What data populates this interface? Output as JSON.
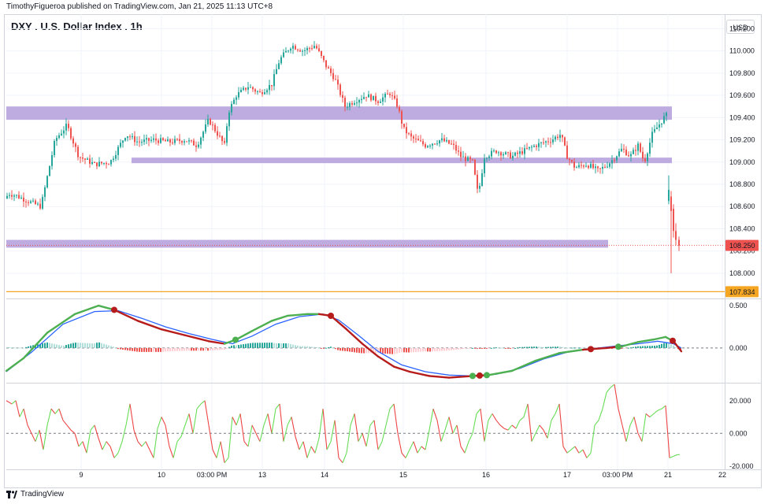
{
  "header": {
    "publisher_line": "TimothyFigueroa published on TradingView.com, Jan 21, 2025 11:13 UTC+8"
  },
  "chart_title": "DXY . U.S. Dollar Index . 1h",
  "currency_label": "USD",
  "footer_brand": "TradingView",
  "colors": {
    "up": "#26a69a",
    "down": "#ef5350",
    "zone": "#b39ddb",
    "support_line": "#f5a623",
    "macd_fast": "#4caf50",
    "macd_slow_down": "#b71c1c",
    "signal": "#2962ff",
    "osc_up": "#66dd55",
    "osc_down": "#ee4444"
  },
  "chart_data": [
    {
      "type": "candlestick",
      "title": "DXY . U.S. Dollar Index . 1h",
      "x_tick_labels": [
        "9",
        "10",
        "03:00 PM",
        "13",
        "14",
        "15",
        "16",
        "17",
        "03:00 PM",
        "21",
        "22"
      ],
      "y_tick_labels": [
        "110.200",
        "110.000",
        "109.800",
        "109.600",
        "109.400",
        "109.200",
        "109.000",
        "108.800",
        "108.600",
        "108.400",
        "108.200",
        "108.000"
      ],
      "ylim": [
        107.78,
        110.33
      ],
      "price_path": [
        [
          0,
          108.48
        ],
        [
          10,
          108.72
        ],
        [
          20,
          108.7
        ],
        [
          32,
          108.66
        ],
        [
          45,
          108.62
        ],
        [
          52,
          108.6
        ],
        [
          58,
          108.8
        ],
        [
          70,
          109.2
        ],
        [
          85,
          109.33
        ],
        [
          100,
          109.05
        ],
        [
          120,
          108.98
        ],
        [
          140,
          109.0
        ],
        [
          160,
          109.25
        ],
        [
          175,
          109.18
        ],
        [
          195,
          109.2
        ],
        [
          215,
          109.18
        ],
        [
          235,
          109.2
        ],
        [
          250,
          109.15
        ],
        [
          265,
          109.38
        ],
        [
          285,
          109.15
        ],
        [
          290,
          109.45
        ],
        [
          300,
          109.6
        ],
        [
          315,
          109.68
        ],
        [
          330,
          109.62
        ],
        [
          345,
          109.7
        ],
        [
          355,
          109.92
        ],
        [
          370,
          110.05
        ],
        [
          385,
          110.0
        ],
        [
          400,
          110.05
        ],
        [
          415,
          109.85
        ],
        [
          425,
          109.75
        ],
        [
          438,
          109.5
        ],
        [
          450,
          109.55
        ],
        [
          465,
          109.6
        ],
        [
          480,
          109.55
        ],
        [
          495,
          109.62
        ],
        [
          505,
          109.5
        ],
        [
          512,
          109.3
        ],
        [
          522,
          109.22
        ],
        [
          540,
          109.15
        ],
        [
          560,
          109.2
        ],
        [
          575,
          109.15
        ],
        [
          585,
          109.05
        ],
        [
          600,
          109.0
        ],
        [
          607,
          108.7
        ],
        [
          615,
          109.05
        ],
        [
          630,
          109.1
        ],
        [
          650,
          109.05
        ],
        [
          665,
          109.1
        ],
        [
          680,
          109.15
        ],
        [
          700,
          109.2
        ],
        [
          712,
          109.25
        ],
        [
          720,
          109.05
        ],
        [
          730,
          108.95
        ],
        [
          745,
          108.98
        ],
        [
          760,
          108.92
        ],
        [
          775,
          109.0
        ],
        [
          790,
          109.12
        ],
        [
          800,
          109.05
        ],
        [
          810,
          109.15
        ],
        [
          818,
          109.0
        ],
        [
          828,
          109.25
        ],
        [
          838,
          109.35
        ],
        [
          845,
          109.42
        ]
      ],
      "gap_candles": [
        [
          849,
          108.65,
          108.75,
          108.62,
          108.88
        ],
        [
          852,
          108.69,
          108.56,
          108.0,
          108.74
        ],
        [
          855,
          108.58,
          108.38,
          108.32,
          108.62
        ],
        [
          858,
          108.38,
          108.3,
          108.25,
          108.45
        ],
        [
          862,
          108.3,
          108.25,
          108.2,
          108.33
        ]
      ],
      "zones": [
        {
          "x1": 8,
          "x2": 853,
          "y_top": 109.5,
          "y_bottom": 109.38
        },
        {
          "x1": 167,
          "x2": 853,
          "y_top": 109.04,
          "y_bottom": 108.99
        },
        {
          "x1": 8,
          "x2": 772,
          "y_top": 108.3,
          "y_bottom": 108.23
        }
      ],
      "horizontal_levels": [
        {
          "value": 107.834,
          "label": "107.834",
          "color": "#f5a623"
        }
      ],
      "current_price": {
        "value": 108.25,
        "label": "108.250"
      }
    },
    {
      "type": "line",
      "name": "macd",
      "y_tick_labels": [
        "0.500",
        "0.000"
      ],
      "ylim": [
        -0.41,
        0.575
      ],
      "fast_line": [
        [
          8,
          -0.27
        ],
        [
          30,
          -0.12
        ],
        [
          60,
          0.18
        ],
        [
          95,
          0.4
        ],
        [
          125,
          0.5
        ],
        [
          145,
          0.45
        ],
        [
          175,
          0.32
        ],
        [
          205,
          0.22
        ],
        [
          235,
          0.15
        ],
        [
          265,
          0.08
        ],
        [
          285,
          0.05
        ],
        [
          300,
          0.1
        ],
        [
          320,
          0.2
        ],
        [
          345,
          0.32
        ],
        [
          365,
          0.38
        ],
        [
          390,
          0.4
        ],
        [
          405,
          0.4
        ],
        [
          420,
          0.38
        ],
        [
          440,
          0.22
        ],
        [
          460,
          0.05
        ],
        [
          480,
          -0.1
        ],
        [
          500,
          -0.22
        ],
        [
          520,
          -0.28
        ],
        [
          545,
          -0.33
        ],
        [
          570,
          -0.35
        ],
        [
          600,
          -0.33
        ],
        [
          620,
          -0.32
        ],
        [
          650,
          -0.27
        ],
        [
          680,
          -0.15
        ],
        [
          710,
          -0.06
        ],
        [
          740,
          -0.02
        ],
        [
          770,
          0.0
        ],
        [
          790,
          0.02
        ],
        [
          810,
          0.07
        ],
        [
          830,
          0.1
        ],
        [
          845,
          0.13
        ],
        [
          855,
          0.08
        ],
        [
          865,
          -0.04
        ]
      ],
      "signal_line": [
        [
          8,
          -0.28
        ],
        [
          40,
          -0.05
        ],
        [
          80,
          0.28
        ],
        [
          120,
          0.43
        ],
        [
          150,
          0.44
        ],
        [
          180,
          0.35
        ],
        [
          210,
          0.25
        ],
        [
          240,
          0.17
        ],
        [
          270,
          0.1
        ],
        [
          295,
          0.05
        ],
        [
          320,
          0.14
        ],
        [
          350,
          0.28
        ],
        [
          380,
          0.37
        ],
        [
          410,
          0.4
        ],
        [
          430,
          0.33
        ],
        [
          455,
          0.15
        ],
        [
          480,
          -0.04
        ],
        [
          510,
          -0.2
        ],
        [
          540,
          -0.28
        ],
        [
          570,
          -0.32
        ],
        [
          600,
          -0.33
        ],
        [
          630,
          -0.31
        ],
        [
          660,
          -0.24
        ],
        [
          690,
          -0.13
        ],
        [
          720,
          -0.05
        ],
        [
          750,
          -0.01
        ],
        [
          780,
          0.02
        ],
        [
          810,
          0.05
        ],
        [
          835,
          0.08
        ],
        [
          855,
          0.05
        ],
        [
          865,
          0.0
        ]
      ],
      "cross_points": [
        {
          "x": 145,
          "dir": "down"
        },
        {
          "x": 299,
          "dir": "up"
        },
        {
          "x": 420,
          "dir": "down"
        },
        {
          "x": 600,
          "dir": "up"
        },
        {
          "x": 609,
          "dir": "down"
        },
        {
          "x": 618,
          "dir": "up"
        },
        {
          "x": 750,
          "dir": "down"
        },
        {
          "x": 785,
          "dir": "up"
        },
        {
          "x": 854,
          "dir": "down"
        }
      ]
    },
    {
      "type": "line",
      "name": "oscillator",
      "y_tick_labels": [
        "20.000",
        "0.000",
        "-20.000"
      ],
      "ylim": [
        -22,
        30
      ],
      "values": [
        [
          8,
          20
        ],
        [
          15,
          18
        ],
        [
          20,
          20
        ],
        [
          25,
          10
        ],
        [
          30,
          15
        ],
        [
          35,
          5
        ],
        [
          40,
          0
        ],
        [
          45,
          -5
        ],
        [
          50,
          2
        ],
        [
          55,
          -10
        ],
        [
          60,
          5
        ],
        [
          65,
          15
        ],
        [
          70,
          12
        ],
        [
          75,
          15
        ],
        [
          80,
          8
        ],
        [
          85,
          5
        ],
        [
          90,
          2
        ],
        [
          95,
          0
        ],
        [
          100,
          -8
        ],
        [
          105,
          -5
        ],
        [
          110,
          -12
        ],
        [
          115,
          2
        ],
        [
          120,
          5
        ],
        [
          125,
          -3
        ],
        [
          130,
          -10
        ],
        [
          135,
          -5
        ],
        [
          140,
          -8
        ],
        [
          145,
          -15
        ],
        [
          150,
          -12
        ],
        [
          155,
          -5
        ],
        [
          160,
          5
        ],
        [
          165,
          18
        ],
        [
          170,
          2
        ],
        [
          175,
          -5
        ],
        [
          180,
          -8
        ],
        [
          185,
          -5
        ],
        [
          190,
          -10
        ],
        [
          195,
          -15
        ],
        [
          200,
          3
        ],
        [
          205,
          10
        ],
        [
          210,
          5
        ],
        [
          215,
          -8
        ],
        [
          220,
          -15
        ],
        [
          225,
          -5
        ],
        [
          230,
          -2
        ],
        [
          235,
          5
        ],
        [
          240,
          12
        ],
        [
          245,
          0
        ],
        [
          250,
          15
        ],
        [
          255,
          18
        ],
        [
          260,
          20
        ],
        [
          265,
          5
        ],
        [
          270,
          -10
        ],
        [
          275,
          -15
        ],
        [
          280,
          -5
        ],
        [
          285,
          -18
        ],
        [
          290,
          -15
        ],
        [
          295,
          10
        ],
        [
          300,
          5
        ],
        [
          305,
          12
        ],
        [
          310,
          -5
        ],
        [
          315,
          -8
        ],
        [
          320,
          5
        ],
        [
          325,
          0
        ],
        [
          330,
          -5
        ],
        [
          335,
          5
        ],
        [
          340,
          12
        ],
        [
          345,
          0
        ],
        [
          350,
          15
        ],
        [
          355,
          18
        ],
        [
          360,
          -5
        ],
        [
          365,
          5
        ],
        [
          370,
          10
        ],
        [
          375,
          -2
        ],
        [
          380,
          -10
        ],
        [
          385,
          -5
        ],
        [
          390,
          -15
        ],
        [
          395,
          -8
        ],
        [
          400,
          -12
        ],
        [
          405,
          -3
        ],
        [
          410,
          15
        ],
        [
          415,
          -10
        ],
        [
          420,
          -5
        ],
        [
          425,
          8
        ],
        [
          430,
          -15
        ],
        [
          435,
          -18
        ],
        [
          440,
          -12
        ],
        [
          445,
          5
        ],
        [
          450,
          12
        ],
        [
          455,
          -5
        ],
        [
          460,
          0
        ],
        [
          465,
          -8
        ],
        [
          470,
          5
        ],
        [
          475,
          8
        ],
        [
          480,
          -10
        ],
        [
          485,
          -5
        ],
        [
          490,
          5
        ],
        [
          495,
          15
        ],
        [
          500,
          18
        ],
        [
          505,
          0
        ],
        [
          510,
          -12
        ],
        [
          515,
          -15
        ],
        [
          520,
          -10
        ],
        [
          525,
          -5
        ],
        [
          530,
          -12
        ],
        [
          535,
          -8
        ],
        [
          540,
          -10
        ],
        [
          545,
          2
        ],
        [
          550,
          15
        ],
        [
          555,
          8
        ],
        [
          560,
          -5
        ],
        [
          565,
          2
        ],
        [
          570,
          10
        ],
        [
          575,
          0
        ],
        [
          580,
          5
        ],
        [
          585,
          -8
        ],
        [
          590,
          -12
        ],
        [
          595,
          -5
        ],
        [
          600,
          0
        ],
        [
          605,
          12
        ],
        [
          610,
          15
        ],
        [
          615,
          -5
        ],
        [
          620,
          8
        ],
        [
          625,
          12
        ],
        [
          630,
          8
        ],
        [
          635,
          5
        ],
        [
          640,
          3
        ],
        [
          645,
          2
        ],
        [
          650,
          5
        ],
        [
          655,
          3
        ],
        [
          660,
          8
        ],
        [
          665,
          10
        ],
        [
          670,
          18
        ],
        [
          675,
          -5
        ],
        [
          680,
          0
        ],
        [
          685,
          5
        ],
        [
          690,
          2
        ],
        [
          695,
          -3
        ],
        [
          700,
          8
        ],
        [
          705,
          12
        ],
        [
          710,
          18
        ],
        [
          715,
          -8
        ],
        [
          720,
          -12
        ],
        [
          725,
          -10
        ],
        [
          730,
          -8
        ],
        [
          735,
          -12
        ],
        [
          740,
          -10
        ],
        [
          745,
          -15
        ],
        [
          750,
          -12
        ],
        [
          755,
          5
        ],
        [
          760,
          8
        ],
        [
          765,
          15
        ],
        [
          770,
          25
        ],
        [
          775,
          28
        ],
        [
          780,
          30
        ],
        [
          785,
          15
        ],
        [
          790,
          5
        ],
        [
          795,
          -5
        ],
        [
          800,
          5
        ],
        [
          805,
          10
        ],
        [
          810,
          0
        ],
        [
          815,
          -5
        ],
        [
          820,
          12
        ],
        [
          825,
          10
        ],
        [
          830,
          12
        ],
        [
          835,
          14
        ],
        [
          840,
          15
        ],
        [
          845,
          17
        ],
        [
          850,
          -15
        ],
        [
          855,
          -14
        ],
        [
          860,
          -13
        ],
        [
          863,
          -13
        ]
      ]
    }
  ]
}
